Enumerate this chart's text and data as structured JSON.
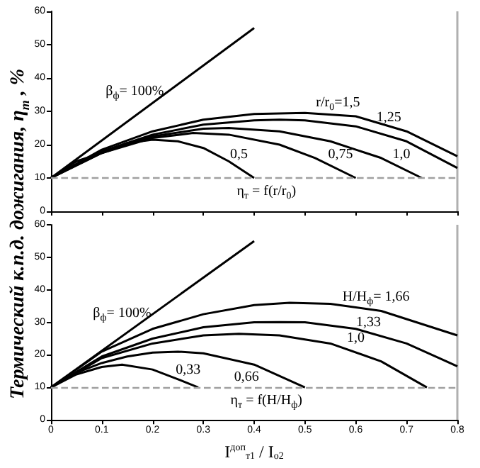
{
  "chart_data": [
    {
      "type": "line",
      "ylabel": "Термический к.п.д. дожигания, η$_{т}$ , %",
      "xlim": [
        0,
        0.8
      ],
      "xticks": [
        {
          "value": 0,
          "label": null
        },
        {
          "value": 0.1,
          "label": null
        },
        {
          "value": 0.2,
          "label": null
        },
        {
          "value": 0.3,
          "label": null
        },
        {
          "value": 0.4,
          "label": null
        },
        {
          "value": 0.5,
          "label": null
        },
        {
          "value": 0.6,
          "label": null
        },
        {
          "value": 0.7,
          "label": null
        },
        {
          "value": 0.8,
          "label": null
        }
      ],
      "ylim": [
        0,
        60
      ],
      "yticks": [
        0,
        10,
        20,
        30,
        40,
        50,
        60
      ],
      "tick_labels": "y",
      "grid": false,
      "marker": "none",
      "line_style": "solid",
      "series": [
        {
          "name": "β$_{ф}$= 100%",
          "color": "#000000",
          "x": [
            0,
            0.4
          ],
          "values": [
            10,
            55
          ]
        },
        {
          "name": "0,5",
          "color": "#000000",
          "x": [
            0,
            0.05,
            0.1,
            0.15,
            0.2,
            0.25,
            0.3,
            0.35,
            0.4
          ],
          "values": [
            10,
            15,
            17.5,
            20.5,
            21.5,
            21,
            19,
            15,
            10
          ]
        },
        {
          "name": "0,75",
          "color": "#000000",
          "x": [
            0,
            0.1,
            0.2,
            0.28,
            0.35,
            0.45,
            0.52,
            0.6
          ],
          "values": [
            10,
            17.5,
            22,
            23.5,
            23,
            20,
            16,
            10
          ]
        },
        {
          "name": "1,0",
          "color": "#000000",
          "x": [
            0,
            0.1,
            0.2,
            0.3,
            0.35,
            0.45,
            0.55,
            0.65,
            0.73
          ],
          "values": [
            10,
            17.5,
            22.5,
            24.8,
            25,
            24,
            21,
            16,
            10
          ]
        },
        {
          "name": "1,25",
          "color": "#000000",
          "x": [
            0,
            0.1,
            0.2,
            0.3,
            0.4,
            0.45,
            0.5,
            0.6,
            0.7,
            0.8
          ],
          "values": [
            10,
            18,
            23,
            26,
            27.3,
            27.5,
            27.3,
            25.5,
            21,
            13
          ]
        },
        {
          "name": "r/r$_{0}$=1,5",
          "color": "#000000",
          "x": [
            0,
            0.1,
            0.2,
            0.3,
            0.4,
            0.5,
            0.6,
            0.7,
            0.8
          ],
          "values": [
            10,
            18.5,
            24,
            27.5,
            29.2,
            29.5,
            28.5,
            24,
            16.5
          ]
        }
      ],
      "ref_lines": [
        {
          "axis": "y",
          "value": 10,
          "color": "#a0a0a0",
          "line_style": "dashed"
        }
      ],
      "annotations": [
        "η$_{т}$ = f(r/r$_{0}$)"
      ]
    },
    {
      "type": "line",
      "xlabel": "I$^{доп}$$_{т1}$ / I$_{o2}$",
      "xlim": [
        0,
        0.8
      ],
      "xticks": [
        0,
        0.1,
        0.2,
        0.3,
        0.4,
        0.5,
        0.6,
        0.7,
        0.8
      ],
      "ylim": [
        0,
        60
      ],
      "yticks": [
        0,
        10,
        20,
        30,
        40,
        50,
        60
      ],
      "grid": false,
      "marker": "none",
      "line_style": "solid",
      "series": [
        {
          "name": "β$_{ф}$= 100%",
          "color": "#000000",
          "x": [
            0,
            0.4
          ],
          "values": [
            10,
            55
          ]
        },
        {
          "name": "0,33",
          "color": "#000000",
          "x": [
            0,
            0.05,
            0.1,
            0.14,
            0.2,
            0.25,
            0.29
          ],
          "values": [
            10,
            14,
            16.3,
            17,
            15.5,
            12.5,
            10
          ]
        },
        {
          "name": "0,66",
          "color": "#000000",
          "x": [
            0,
            0.05,
            0.1,
            0.15,
            0.2,
            0.25,
            0.3,
            0.4,
            0.5
          ],
          "values": [
            10,
            14.5,
            17.5,
            19.5,
            20.7,
            21,
            20.5,
            17,
            10
          ]
        },
        {
          "name": "1,0",
          "color": "#000000",
          "x": [
            0,
            0.1,
            0.2,
            0.3,
            0.37,
            0.45,
            0.55,
            0.65,
            0.74
          ],
          "values": [
            10,
            19,
            23.5,
            26,
            26.5,
            26,
            23.5,
            18,
            10
          ]
        },
        {
          "name": "1,33",
          "color": "#000000",
          "x": [
            0,
            0.1,
            0.2,
            0.3,
            0.4,
            0.45,
            0.5,
            0.6,
            0.7,
            0.8
          ],
          "values": [
            10,
            19.5,
            25,
            28.5,
            30,
            30.1,
            30,
            28,
            23.5,
            16.5
          ]
        },
        {
          "name": "H/H$_{ф}$= 1,66",
          "color": "#000000",
          "x": [
            0,
            0.1,
            0.2,
            0.3,
            0.4,
            0.47,
            0.55,
            0.65,
            0.8
          ],
          "values": [
            10,
            21,
            28,
            32.5,
            35.3,
            36,
            35.7,
            33.5,
            26
          ]
        }
      ],
      "ref_lines": [
        {
          "axis": "y",
          "value": 10,
          "color": "#a0a0a0",
          "line_style": "dashed"
        }
      ],
      "annotations": [
        "η$_{т}$ = f(H/H$_{ф}$)"
      ]
    }
  ]
}
